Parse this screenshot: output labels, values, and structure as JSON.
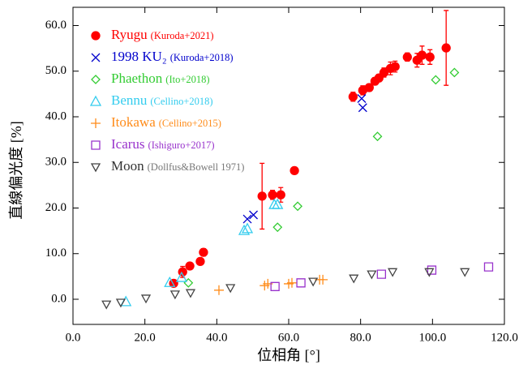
{
  "chart_data": {
    "type": "scatter",
    "x_label": "位相角 [°]",
    "y_label": "直線偏光度 [%]",
    "xlim": [
      0,
      120
    ],
    "ylim": [
      -5.5,
      64
    ],
    "xticks": [
      {
        "value": 0,
        "label": "0.0"
      },
      {
        "value": 20,
        "label": "20.0"
      },
      {
        "value": 40,
        "label": "40.0"
      },
      {
        "value": 60,
        "label": "60.0"
      },
      {
        "value": 80,
        "label": "80.0"
      },
      {
        "value": 100,
        "label": "100.0"
      },
      {
        "value": 120,
        "label": "120.0"
      }
    ],
    "yticks": [
      {
        "value": 0,
        "label": "0.0"
      },
      {
        "value": 10,
        "label": "10.0"
      },
      {
        "value": 20,
        "label": "20.0"
      },
      {
        "value": 30,
        "label": "30.0"
      },
      {
        "value": 40,
        "label": "40.0"
      },
      {
        "value": 50,
        "label": "50.0"
      },
      {
        "value": 60,
        "label": "60.0"
      }
    ],
    "series": [
      {
        "name": "Ryugu",
        "reference": "(Kuroda+2021)",
        "color": "#ff0000",
        "marker": "circle",
        "filled": true,
        "x": [
          28.0,
          30.5,
          32.5,
          35.4,
          36.3,
          52.6,
          55.5,
          57.8,
          61.6,
          77.9,
          80.6,
          82.4,
          84.0,
          85.1,
          86.5,
          88.3,
          89.6,
          93.0,
          95.7,
          97.1,
          99.3,
          103.8
        ],
        "values": [
          3.5,
          6.0,
          7.3,
          8.3,
          10.3,
          22.6,
          22.9,
          22.9,
          28.2,
          44.4,
          45.8,
          46.4,
          47.8,
          48.5,
          49.7,
          50.6,
          51.0,
          53.1,
          52.4,
          53.5,
          53.1,
          55.1
        ],
        "errors": [
          0.5,
          1.2,
          0.5,
          0.5,
          0.8,
          7.2,
          1.0,
          1.6,
          0.4,
          1.0,
          1.0,
          0.8,
          0.8,
          0.8,
          1.0,
          1.4,
          1.2,
          0.9,
          1.5,
          2.0,
          1.6,
          8.2
        ]
      },
      {
        "name": "1998 KU₂",
        "reference": "(Kuroda+2018)",
        "color": "#0000cc",
        "marker": "x",
        "filled": false,
        "x": [
          48.5,
          50.2,
          80.3,
          80.6
        ],
        "values": [
          17.6,
          18.5,
          44.0,
          42.0
        ]
      },
      {
        "name": "Phaethon",
        "reference": "(Ito+2018)",
        "color": "#33cc33",
        "marker": "diamond",
        "filled": false,
        "x": [
          32.1,
          56.9,
          62.5,
          84.7,
          100.9,
          106.1
        ],
        "values": [
          3.6,
          15.8,
          20.4,
          35.7,
          48.1,
          49.7
        ]
      },
      {
        "name": "Bennu",
        "reference": "(Cellino+2018)",
        "color": "#33ccee",
        "marker": "triangle",
        "filled": false,
        "x": [
          14.7,
          26.9,
          30.2,
          47.6,
          48.5,
          56.0,
          56.9
        ],
        "values": [
          -0.5,
          3.7,
          4.8,
          15.1,
          15.5,
          20.8,
          20.8
        ]
      },
      {
        "name": "Itokawa",
        "reference": "(Cellino+2015)",
        "color": "#ff8c1a",
        "marker": "plus",
        "filled": false,
        "x": [
          40.6,
          53.3,
          54.2,
          60.0,
          60.9,
          68.6,
          69.5
        ],
        "values": [
          2.0,
          3.0,
          3.4,
          3.4,
          3.6,
          4.3,
          4.3
        ]
      },
      {
        "name": "Icarus",
        "reference": "(Ishiguro+2017)",
        "color": "#9933cc",
        "marker": "square",
        "filled": false,
        "x": [
          56.2,
          63.4,
          85.8,
          99.8,
          115.6
        ],
        "values": [
          2.8,
          3.6,
          5.5,
          6.4,
          7.1
        ]
      },
      {
        "name": "Moon",
        "reference": "(Dollfus&Bowell 1971)",
        "color": "#444444",
        "marker": "triangle-down",
        "filled": false,
        "x": [
          9.3,
          13.3,
          20.3,
          28.4,
          32.7,
          43.8,
          66.8,
          78.1,
          83.1,
          88.9,
          99.1,
          109.0
        ],
        "values": [
          -1.1,
          -0.7,
          0.2,
          1.1,
          1.4,
          2.5,
          3.9,
          4.6,
          5.5,
          6.0,
          6.0,
          6.0
        ]
      }
    ]
  }
}
